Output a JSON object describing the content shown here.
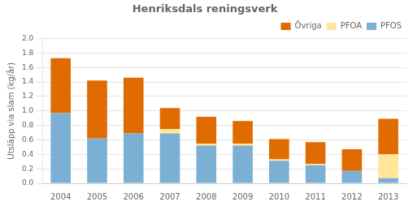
{
  "chart_data": {
    "type": "bar",
    "title": "Henriksdals reningsverk",
    "ylabel": "Utsläpp via slam (kg/år)",
    "categories": [
      "2004",
      "2005",
      "2006",
      "2007",
      "2008",
      "2009",
      "2010",
      "2011",
      "2012",
      "2013"
    ],
    "series": [
      {
        "name": "PFOS",
        "color": "#7BAFD4",
        "values": [
          0.97,
          0.62,
          0.69,
          0.69,
          0.52,
          0.52,
          0.31,
          0.25,
          0.17,
          0.07
        ]
      },
      {
        "name": "PFOA",
        "color": "#FFE699",
        "values": [
          0.0,
          0.0,
          0.0,
          0.06,
          0.03,
          0.03,
          0.02,
          0.02,
          0.0,
          0.33
        ]
      },
      {
        "name": "Övriga",
        "color": "#E06B00",
        "values": [
          0.76,
          0.8,
          0.77,
          0.29,
          0.37,
          0.31,
          0.28,
          0.3,
          0.3,
          0.49
        ]
      }
    ],
    "stacked": true,
    "ylim": [
      0,
      2.0
    ],
    "yticks": [
      {
        "value": 0,
        "label": "0.0"
      },
      0.2,
      0.4,
      0.6,
      0.8,
      {
        "value": 1.0,
        "label": "1.0"
      },
      1.2,
      1.4,
      1.6,
      1.8,
      {
        "value": 2.0,
        "label": "2.0"
      }
    ],
    "grid": true,
    "legend": "upper right"
  }
}
